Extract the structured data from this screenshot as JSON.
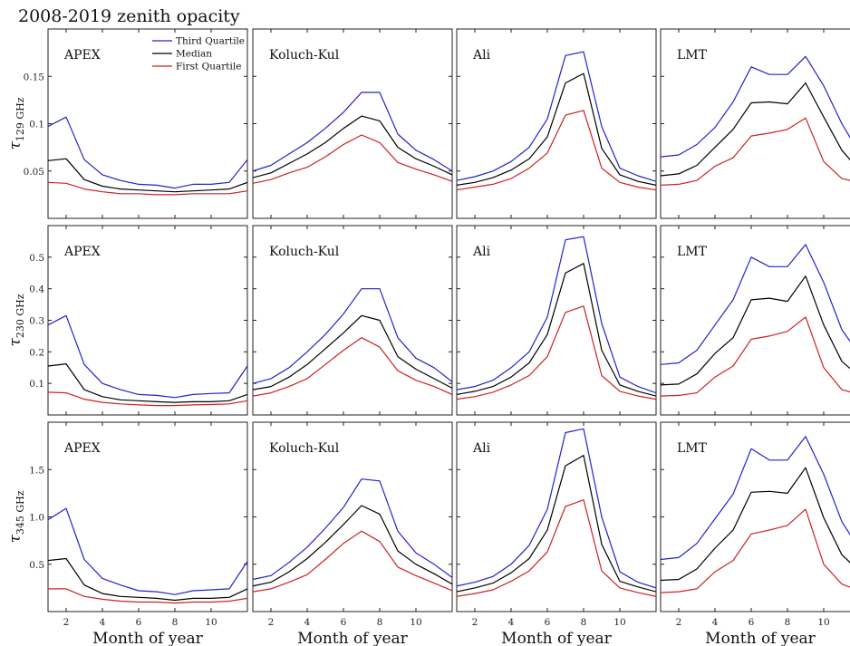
{
  "chart_data": {
    "type": "line",
    "title": "2008-2019 zenith opacity",
    "xlabel": "Month of year",
    "x": [
      1,
      2,
      3,
      4,
      5,
      6,
      7,
      8,
      9,
      10,
      11,
      12
    ],
    "xlim": [
      1,
      12
    ],
    "xticks": [
      2,
      4,
      6,
      8,
      10
    ],
    "legend": {
      "panel": "APEX-129",
      "placement": "top-right",
      "entries": [
        {
          "label": "Third Quartile",
          "color": "#2222cc"
        },
        {
          "label": "Median",
          "color": "#000000"
        },
        {
          "label": "First Quartile",
          "color": "#cc2222"
        }
      ]
    },
    "sites": [
      "APEX",
      "Koluch-Kul",
      "Ali",
      "LMT"
    ],
    "rows": [
      {
        "ylabel_main": "τ",
        "ylabel_sub": "129 GHz",
        "ylim": [
          0,
          0.2
        ],
        "yticks": [
          0.05,
          0.1,
          0.15
        ],
        "yticklabels": [
          "0.05",
          "0.1",
          "0.15"
        ],
        "panels": [
          {
            "site": "APEX",
            "q3": [
              0.097,
              0.107,
              0.062,
              0.046,
              0.04,
              0.036,
              0.035,
              0.032,
              0.036,
              0.036,
              0.038,
              0.062
            ],
            "median": [
              0.061,
              0.063,
              0.041,
              0.034,
              0.031,
              0.03,
              0.029,
              0.028,
              0.029,
              0.03,
              0.031,
              0.038
            ],
            "q1": [
              0.038,
              0.037,
              0.031,
              0.028,
              0.026,
              0.026,
              0.025,
              0.025,
              0.026,
              0.026,
              0.026,
              0.029
            ]
          },
          {
            "site": "Koluch-Kul",
            "q3": [
              0.05,
              0.056,
              0.068,
              0.08,
              0.095,
              0.112,
              0.133,
              0.133,
              0.089,
              0.072,
              0.062,
              0.05
            ],
            "median": [
              0.043,
              0.048,
              0.058,
              0.068,
              0.08,
              0.095,
              0.108,
              0.103,
              0.075,
              0.063,
              0.055,
              0.046
            ],
            "q1": [
              0.037,
              0.041,
              0.048,
              0.054,
              0.065,
              0.078,
              0.088,
              0.08,
              0.059,
              0.052,
              0.046,
              0.039
            ]
          },
          {
            "site": "Ali",
            "q3": [
              0.04,
              0.044,
              0.05,
              0.06,
              0.075,
              0.105,
              0.172,
              0.176,
              0.097,
              0.053,
              0.045,
              0.039
            ],
            "median": [
              0.035,
              0.038,
              0.043,
              0.051,
              0.063,
              0.086,
              0.143,
              0.153,
              0.074,
              0.046,
              0.039,
              0.035
            ],
            "q1": [
              0.03,
              0.033,
              0.036,
              0.042,
              0.053,
              0.069,
              0.109,
              0.114,
              0.053,
              0.038,
              0.033,
              0.03
            ]
          },
          {
            "site": "LMT",
            "q3": [
              0.065,
              0.067,
              0.078,
              0.096,
              0.123,
              0.16,
              0.152,
              0.152,
              0.171,
              0.14,
              0.1,
              0.068
            ],
            "median": [
              0.045,
              0.047,
              0.056,
              0.075,
              0.094,
              0.122,
              0.123,
              0.121,
              0.143,
              0.107,
              0.072,
              0.05
            ],
            "q1": [
              0.035,
              0.036,
              0.04,
              0.055,
              0.064,
              0.087,
              0.09,
              0.094,
              0.106,
              0.06,
              0.042,
              0.038
            ]
          }
        ]
      },
      {
        "ylabel_main": "τ",
        "ylabel_sub": "230 GHz",
        "ylim": [
          0,
          0.6
        ],
        "yticks": [
          0.1,
          0.2,
          0.3,
          0.4,
          0.5
        ],
        "yticklabels": [
          "0.1",
          "0.2",
          "0.3",
          "0.4",
          "0.5"
        ],
        "panels": [
          {
            "site": "APEX",
            "q3": [
              0.285,
              0.315,
              0.16,
              0.1,
              0.08,
              0.065,
              0.062,
              0.055,
              0.065,
              0.068,
              0.07,
              0.155
            ],
            "median": [
              0.155,
              0.162,
              0.08,
              0.058,
              0.048,
              0.045,
              0.042,
              0.04,
              0.042,
              0.042,
              0.045,
              0.065
            ],
            "q1": [
              0.072,
              0.07,
              0.05,
              0.04,
              0.035,
              0.032,
              0.03,
              0.03,
              0.032,
              0.033,
              0.035,
              0.045
            ]
          },
          {
            "site": "Koluch-Kul",
            "q3": [
              0.1,
              0.115,
              0.15,
              0.2,
              0.255,
              0.32,
              0.4,
              0.4,
              0.245,
              0.18,
              0.15,
              0.105
            ],
            "median": [
              0.08,
              0.09,
              0.12,
              0.16,
              0.21,
              0.26,
              0.315,
              0.3,
              0.185,
              0.145,
              0.115,
              0.085
            ],
            "q1": [
              0.06,
              0.07,
              0.09,
              0.115,
              0.16,
              0.205,
              0.245,
              0.215,
              0.14,
              0.11,
              0.09,
              0.065
            ]
          },
          {
            "site": "Ali",
            "q3": [
              0.08,
              0.09,
              0.11,
              0.15,
              0.2,
              0.31,
              0.555,
              0.565,
              0.29,
              0.12,
              0.09,
              0.07
            ],
            "median": [
              0.065,
              0.075,
              0.09,
              0.12,
              0.165,
              0.255,
              0.45,
              0.48,
              0.205,
              0.095,
              0.075,
              0.06
            ],
            "q1": [
              0.05,
              0.058,
              0.072,
              0.095,
              0.125,
              0.185,
              0.325,
              0.345,
              0.125,
              0.075,
              0.06,
              0.05
            ]
          },
          {
            "site": "LMT",
            "q3": [
              0.16,
              0.165,
              0.205,
              0.285,
              0.365,
              0.5,
              0.47,
              0.47,
              0.54,
              0.42,
              0.27,
              0.19
            ],
            "median": [
              0.095,
              0.098,
              0.13,
              0.195,
              0.245,
              0.365,
              0.37,
              0.36,
              0.44,
              0.285,
              0.17,
              0.12
            ],
            "q1": [
              0.06,
              0.062,
              0.07,
              0.12,
              0.155,
              0.24,
              0.25,
              0.265,
              0.31,
              0.15,
              0.08,
              0.065
            ]
          }
        ]
      },
      {
        "ylabel_main": "τ",
        "ylabel_sub": "345 GHz",
        "ylim": [
          0,
          2.0
        ],
        "yticks": [
          0.5,
          1.0,
          1.5
        ],
        "yticklabels": [
          "0.5",
          "1.0",
          "1.5"
        ],
        "panels": [
          {
            "site": "APEX",
            "q3": [
              0.97,
              1.09,
              0.55,
              0.35,
              0.28,
              0.22,
              0.21,
              0.18,
              0.22,
              0.23,
              0.24,
              0.53
            ],
            "median": [
              0.54,
              0.56,
              0.28,
              0.19,
              0.16,
              0.15,
              0.14,
              0.12,
              0.14,
              0.14,
              0.15,
              0.24
            ],
            "q1": [
              0.24,
              0.24,
              0.16,
              0.13,
              0.11,
              0.1,
              0.1,
              0.09,
              0.1,
              0.1,
              0.11,
              0.14
            ]
          },
          {
            "site": "Koluch-Kul",
            "q3": [
              0.34,
              0.38,
              0.52,
              0.68,
              0.88,
              1.1,
              1.4,
              1.38,
              0.85,
              0.62,
              0.5,
              0.36
            ],
            "median": [
              0.27,
              0.31,
              0.42,
              0.56,
              0.73,
              0.92,
              1.12,
              1.03,
              0.64,
              0.5,
              0.4,
              0.29
            ],
            "q1": [
              0.21,
              0.24,
              0.31,
              0.39,
              0.55,
              0.72,
              0.85,
              0.74,
              0.47,
              0.38,
              0.3,
              0.22
            ]
          },
          {
            "site": "Ali",
            "q3": [
              0.27,
              0.31,
              0.37,
              0.5,
              0.7,
              1.08,
              1.89,
              1.93,
              1.0,
              0.42,
              0.31,
              0.25
            ],
            "median": [
              0.21,
              0.25,
              0.3,
              0.41,
              0.56,
              0.86,
              1.54,
              1.65,
              0.71,
              0.32,
              0.26,
              0.21
            ],
            "q1": [
              0.16,
              0.19,
              0.23,
              0.32,
              0.43,
              0.63,
              1.11,
              1.18,
              0.43,
              0.25,
              0.2,
              0.16
            ]
          },
          {
            "site": "LMT",
            "q3": [
              0.55,
              0.57,
              0.72,
              0.98,
              1.24,
              1.72,
              1.6,
              1.6,
              1.85,
              1.45,
              0.95,
              0.65
            ],
            "median": [
              0.33,
              0.34,
              0.45,
              0.67,
              0.86,
              1.26,
              1.27,
              1.25,
              1.52,
              0.99,
              0.6,
              0.42
            ],
            "q1": [
              0.2,
              0.21,
              0.24,
              0.42,
              0.54,
              0.82,
              0.86,
              0.91,
              1.08,
              0.5,
              0.29,
              0.22
            ]
          }
        ]
      }
    ],
    "series_colors": {
      "q3": "#2222cc",
      "median": "#000000",
      "q1": "#cc2222"
    }
  }
}
